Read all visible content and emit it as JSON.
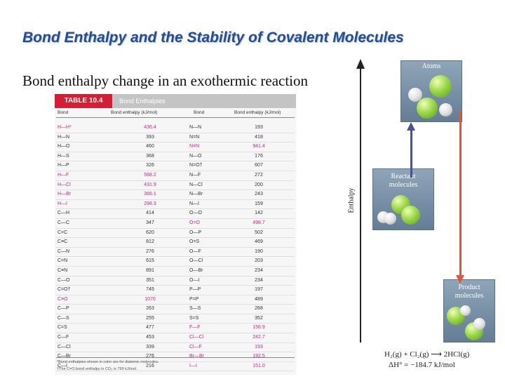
{
  "slide": {
    "title": "Bond Enthalpy and the Stability of Covalent Molecules",
    "subtitle": "Bond enthalpy change in an exothermic reaction"
  },
  "table": {
    "badge": "TABLE 10.4",
    "caption": "Bond Enthalpies",
    "headers": [
      "Bond",
      "Bond enthalpy (kJ/mol)",
      "Bond",
      "Bond enthalpy (kJ/mol)"
    ],
    "rows": [
      {
        "b1": "H—H*",
        "v1": "436.4",
        "b2": "N—N",
        "v2": "193",
        "hl1": true,
        "hl2": false
      },
      {
        "b1": "H—N",
        "v1": "393",
        "b2": "N=N",
        "v2": "418",
        "hl1": false,
        "hl2": false
      },
      {
        "b1": "H—O",
        "v1": "460",
        "b2": "N≡N",
        "v2": "941.4",
        "hl1": false,
        "hl2": true
      },
      {
        "b1": "H—S",
        "v1": "368",
        "b2": "N—O",
        "v2": "176",
        "hl1": false,
        "hl2": false
      },
      {
        "b1": "H—P",
        "v1": "326",
        "b2": "N=O†",
        "v2": "607",
        "hl1": false,
        "hl2": false
      },
      {
        "b1": "H—F",
        "v1": "568.2",
        "b2": "N—F",
        "v2": "272",
        "hl1": true,
        "hl2": false
      },
      {
        "b1": "H—Cl",
        "v1": "431.9",
        "b2": "N—Cl",
        "v2": "200",
        "hl1": true,
        "hl2": false
      },
      {
        "b1": "H—Br",
        "v1": "366.1",
        "b2": "N—Br",
        "v2": "243",
        "hl1": true,
        "hl2": false
      },
      {
        "b1": "H—I",
        "v1": "298.3",
        "b2": "N—I",
        "v2": "159",
        "hl1": true,
        "hl2": false
      },
      {
        "b1": "C—H",
        "v1": "414",
        "b2": "O—O",
        "v2": "142",
        "hl1": false,
        "hl2": false
      },
      {
        "b1": "C—C",
        "v1": "347",
        "b2": "O=O",
        "v2": "498.7",
        "hl1": false,
        "hl2": true
      },
      {
        "b1": "C=C",
        "v1": "620",
        "b2": "O—P",
        "v2": "502",
        "hl1": false,
        "hl2": false
      },
      {
        "b1": "C≡C",
        "v1": "812",
        "b2": "O=S",
        "v2": "469",
        "hl1": false,
        "hl2": false
      },
      {
        "b1": "C—N",
        "v1": "276",
        "b2": "O—F",
        "v2": "190",
        "hl1": false,
        "hl2": false
      },
      {
        "b1": "C=N",
        "v1": "615",
        "b2": "O—Cl",
        "v2": "203",
        "hl1": false,
        "hl2": false
      },
      {
        "b1": "C≡N",
        "v1": "891",
        "b2": "O—Br",
        "v2": "234",
        "hl1": false,
        "hl2": false
      },
      {
        "b1": "C—O",
        "v1": "351",
        "b2": "O—I",
        "v2": "234",
        "hl1": false,
        "hl2": false
      },
      {
        "b1": "C=O†",
        "v1": "745",
        "b2": "P—P",
        "v2": "197",
        "hl1": false,
        "hl2": false
      },
      {
        "b1": "C≡O",
        "v1": "1070",
        "b2": "P=P",
        "v2": "489",
        "hl1": true,
        "hl2": false
      },
      {
        "b1": "C—P",
        "v1": "263",
        "b2": "S—S",
        "v2": "268",
        "hl1": false,
        "hl2": false
      },
      {
        "b1": "C—S",
        "v1": "255",
        "b2": "S=S",
        "v2": "352",
        "hl1": false,
        "hl2": false
      },
      {
        "b1": "C=S",
        "v1": "477",
        "b2": "F—F",
        "v2": "156.9",
        "hl1": false,
        "hl2": true
      },
      {
        "b1": "C—F",
        "v1": "453",
        "b2": "Cl—Cl",
        "v2": "242.7",
        "hl1": false,
        "hl2": true
      },
      {
        "b1": "C—Cl",
        "v1": "339",
        "b2": "Cl—F",
        "v2": "193",
        "hl1": false,
        "hl2": true
      },
      {
        "b1": "C—Br",
        "v1": "276",
        "b2": "Br—Br",
        "v2": "192.5",
        "hl1": false,
        "hl2": true
      },
      {
        "b1": "C—I",
        "v1": "216",
        "b2": "I—I",
        "v2": "151.0",
        "hl1": false,
        "hl2": true
      }
    ],
    "footnotes": [
      "*Bond enthalpies shown in color are for diatomic molecules.",
      "†The C=O bond enthalpy in CO₂ is 799 kJ/mol."
    ]
  },
  "diagram": {
    "y_axis_label": "Enthalpy",
    "atoms_label": "Atoms",
    "reactant_label_line1": "Reactant",
    "reactant_label_line2": "molecules",
    "product_label_line1": "Product",
    "product_label_line2": "molecules",
    "equation": "H₂(g) + Cl₂(g) ⟶ 2HCl(g)",
    "delta_h": "ΔH° = −184.7 kJ/mol",
    "colors": {
      "up_arrow": "#4a4fa0",
      "down_arrow": "#d95a3a",
      "box": "#7b91a8",
      "highlight": "#c2278f",
      "badge": "#d41e35"
    }
  }
}
